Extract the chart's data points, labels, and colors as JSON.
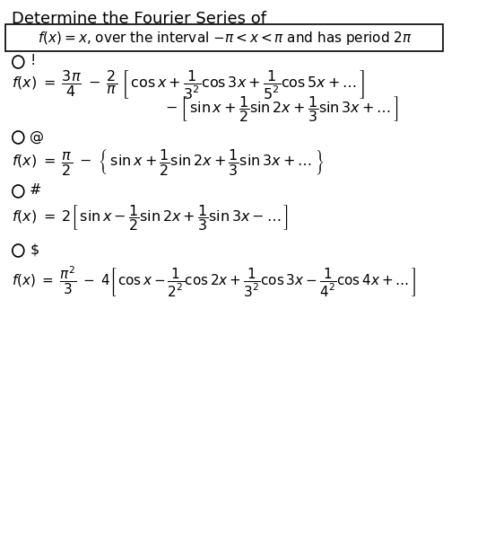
{
  "title": "Determine the Fourier Series of",
  "problem_box": "f(x) = x, over the interval \\(-\\pi < x < \\pi\\) and has period 2\\pi",
  "background_color": "#ffffff",
  "text_color": "#000000",
  "options": [
    {
      "symbol": "!",
      "lines": [
        "f(x) = \\dfrac{3\\pi}{4} \\;-\\; \\dfrac{2}{\\pi} \\left[ \\cos x + \\dfrac{1}{3^2}\\cos 3x + \\dfrac{1}{5^2}\\cos 5x + \\ldots \\right]",
        "\\qquad\\qquad\\qquad\\qquad\\; - \\left[ \\sin x + \\dfrac{1}{2}\\sin 2x + \\dfrac{1}{3}\\sin 3x + \\ldots \\right]"
      ]
    },
    {
      "symbol": "@",
      "lines": [
        "f(x) = \\dfrac{\\pi}{2} - \\left\\{ \\sin x + \\dfrac{1}{2}\\sin 2x + \\dfrac{1}{3}\\sin 3x + \\ldots \\right\\}"
      ]
    },
    {
      "symbol": "#",
      "lines": [
        "f(x) = 2\\left[ \\sin x - \\dfrac{1}{2}\\sin 2x + \\dfrac{1}{3}\\sin 3x - \\ldots \\right]"
      ]
    },
    {
      "symbol": "$",
      "lines": [
        "f(x) = \\dfrac{\\pi^2}{3} - 4\\left[ \\cos x - \\dfrac{1}{2^2}\\cos 2x + \\dfrac{1}{3^2}\\cos 3x - \\dfrac{1}{4^2}\\cos 4x + \\ldots \\right]"
      ]
    }
  ]
}
